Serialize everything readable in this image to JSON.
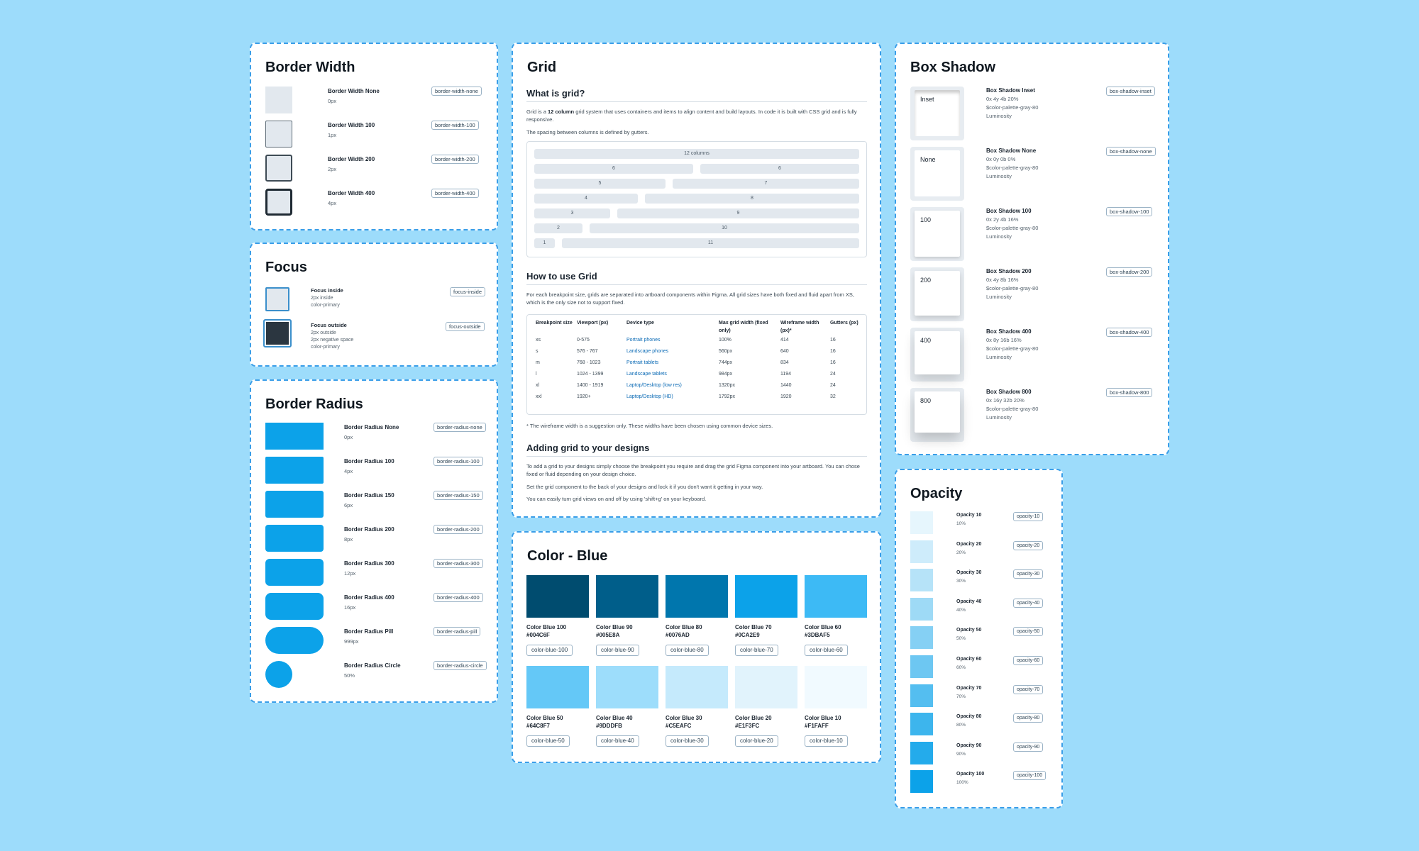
{
  "border_width": {
    "title": "Border Width",
    "items": [
      {
        "name": "Border Width None",
        "value": "0px",
        "token": "border-width-none"
      },
      {
        "name": "Border Width 100",
        "value": "1px",
        "token": "border-width-100"
      },
      {
        "name": "Border Width 200",
        "value": "2px",
        "token": "border-width-200"
      },
      {
        "name": "Border Width 400",
        "value": "4px",
        "token": "border-width-400"
      }
    ]
  },
  "focus": {
    "title": "Focus",
    "items": [
      {
        "name": "Focus inside",
        "lines": [
          "2px inside",
          "color-primary"
        ],
        "token": "focus-inside"
      },
      {
        "name": "Focus outside",
        "lines": [
          "2px outside",
          "2px negative space",
          "color-primary"
        ],
        "token": "focus-outside"
      }
    ]
  },
  "border_radius": {
    "title": "Border Radius",
    "items": [
      {
        "name": "Border Radius None",
        "value": "0px",
        "token": "border-radius-none"
      },
      {
        "name": "Border Radius 100",
        "value": "4px",
        "token": "border-radius-100"
      },
      {
        "name": "Border Radius 150",
        "value": "6px",
        "token": "border-radius-150"
      },
      {
        "name": "Border Radius 200",
        "value": "8px",
        "token": "border-radius-200"
      },
      {
        "name": "Border Radius 300",
        "value": "12px",
        "token": "border-radius-300"
      },
      {
        "name": "Border Radius 400",
        "value": "16px",
        "token": "border-radius-400"
      },
      {
        "name": "Border Radius Pill",
        "value": "999px",
        "token": "border-radius-pill"
      },
      {
        "name": "Border Radius Circle",
        "value": "50%",
        "token": "border-radius-circle"
      }
    ]
  },
  "grid": {
    "title": "Grid",
    "what_heading": "What is grid?",
    "what_text_1a": "Grid is a ",
    "what_text_1b": "12 column",
    "what_text_1c": " grid system that uses containers and items to align content and build layouts. In code it is built with CSS grid and is fully responsive.",
    "what_text_2": "The spacing between columns is defined by gutters.",
    "rows": [
      [
        "12 columns"
      ],
      [
        "6",
        "6"
      ],
      [
        "5",
        "7"
      ],
      [
        "4",
        "8"
      ],
      [
        "3",
        "9"
      ],
      [
        "2",
        "10"
      ],
      [
        "1",
        "11"
      ]
    ],
    "how_heading": "How to use Grid",
    "how_text": "For each breakpoint size, grids are separated into artboard components within Figma. All grid sizes have both fixed and fluid apart from XS, which is the only size not to support fixed.",
    "table_headers": [
      "Breakpoint size",
      "Viewport (px)",
      "Device type",
      "Max grid width (fixed only)",
      "Wireframe width (px)*",
      "Gutters (px)"
    ],
    "table_rows": [
      [
        "xs",
        "0-575",
        "Portrait phones",
        "100%",
        "414",
        "16"
      ],
      [
        "s",
        "576 - 767",
        "Landscape phones",
        "560px",
        "640",
        "16"
      ],
      [
        "m",
        "768 - 1023",
        "Portrait tablets",
        "744px",
        "834",
        "16"
      ],
      [
        "l",
        "1024 - 1399",
        "Landscape tablets",
        "984px",
        "1194",
        "24"
      ],
      [
        "xl",
        "1400 - 1919",
        "Laptop/Desktop (low res)",
        "1320px",
        "1440",
        "24"
      ],
      [
        "xxl",
        "1920+",
        "Laptop/Desktop (HD)",
        "1792px",
        "1920",
        "32"
      ]
    ],
    "footnote": "* The wireframe width is a suggestion only. These widths have been chosen using common device sizes.",
    "adding_heading": "Adding grid to your designs",
    "adding_text_1": "To add a grid to your designs simply choose the breakpoint you require and drag the grid Figma component into your artboard. You can chose fixed or fluid depending on your design choice.",
    "adding_text_2": "Set the grid component to the back of your designs and lock it if you don't want it getting in your way.",
    "adding_text_3": "You can easily turn grid views on and off by using 'shift+g' on your keyboard."
  },
  "color_blue": {
    "title": "Color - Blue",
    "swatches": [
      {
        "name": "Color Blue 100",
        "hex": "#004C6F",
        "token": "color-blue-100"
      },
      {
        "name": "Color Blue 90",
        "hex": "#005E8A",
        "token": "color-blue-90"
      },
      {
        "name": "Color Blue 80",
        "hex": "#0076AD",
        "token": "color-blue-80"
      },
      {
        "name": "Color Blue 70",
        "hex": "#0CA2E9",
        "token": "color-blue-70"
      },
      {
        "name": "Color Blue 60",
        "hex": "#3DBAF5",
        "token": "color-blue-60"
      },
      {
        "name": "Color Blue 50",
        "hex": "#64C8F7",
        "token": "color-blue-50"
      },
      {
        "name": "Color Blue 40",
        "hex": "#9DDDFB",
        "token": "color-blue-40"
      },
      {
        "name": "Color Blue 30",
        "hex": "#C5EAFC",
        "token": "color-blue-30"
      },
      {
        "name": "Color Blue 20",
        "hex": "#E1F3FC",
        "token": "color-blue-20"
      },
      {
        "name": "Color Blue 10",
        "hex": "#F1FAFF",
        "token": "color-blue-10"
      }
    ]
  },
  "box_shadow": {
    "title": "Box Shadow",
    "items": [
      {
        "label": "Inset",
        "name": "Box Shadow Inset",
        "lines": [
          "0x 4y 4b 20%",
          "$color-palette-gray-80",
          "Luminosity"
        ],
        "token": "box-shadow-inset"
      },
      {
        "label": "None",
        "name": "Box Shadow None",
        "lines": [
          "0x 0y 0b 0%",
          "$color-palette-gray-80",
          "Luminosity"
        ],
        "token": "box-shadow-none"
      },
      {
        "label": "100",
        "name": "Box Shadow 100",
        "lines": [
          "0x 2y 4b 16%",
          "$color-palette-gray-80",
          "Luminosity"
        ],
        "token": "box-shadow-100"
      },
      {
        "label": "200",
        "name": "Box Shadow 200",
        "lines": [
          "0x 4y 8b 16%",
          "$color-palette-gray-80",
          "Luminosity"
        ],
        "token": "box-shadow-200"
      },
      {
        "label": "400",
        "name": "Box Shadow 400",
        "lines": [
          "0x 8y 16b 16%",
          "$color-palette-gray-80",
          "Luminosity"
        ],
        "token": "box-shadow-400"
      },
      {
        "label": "800",
        "name": "Box Shadow 800",
        "lines": [
          "0x 16y 32b 20%",
          "$color-palette-gray-80",
          "Luminosity"
        ],
        "token": "box-shadow-800"
      }
    ]
  },
  "opacity": {
    "title": "Opacity",
    "items": [
      {
        "name": "Opacity 10",
        "value": "10%",
        "token": "opacity-10",
        "level": 0.1
      },
      {
        "name": "Opacity 20",
        "value": "20%",
        "token": "opacity-20",
        "level": 0.2
      },
      {
        "name": "Opacity 30",
        "value": "30%",
        "token": "opacity-30",
        "level": 0.3
      },
      {
        "name": "Opacity 40",
        "value": "40%",
        "token": "opacity-40",
        "level": 0.4
      },
      {
        "name": "Opacity 50",
        "value": "50%",
        "token": "opacity-50",
        "level": 0.5
      },
      {
        "name": "Opacity 60",
        "value": "60%",
        "token": "opacity-60",
        "level": 0.6
      },
      {
        "name": "Opacity 70",
        "value": "70%",
        "token": "opacity-70",
        "level": 0.7
      },
      {
        "name": "Opacity 80",
        "value": "80%",
        "token": "opacity-80",
        "level": 0.8
      },
      {
        "name": "Opacity 90",
        "value": "90%",
        "token": "opacity-90",
        "level": 0.9
      },
      {
        "name": "Opacity 100",
        "value": "100%",
        "token": "opacity-100",
        "level": 1.0
      }
    ]
  },
  "colors": {
    "background": "#9ddcfb",
    "primary": "#0ca2e9",
    "neutral_swatch": "#e2e8ee",
    "dark": "#2b3640"
  }
}
